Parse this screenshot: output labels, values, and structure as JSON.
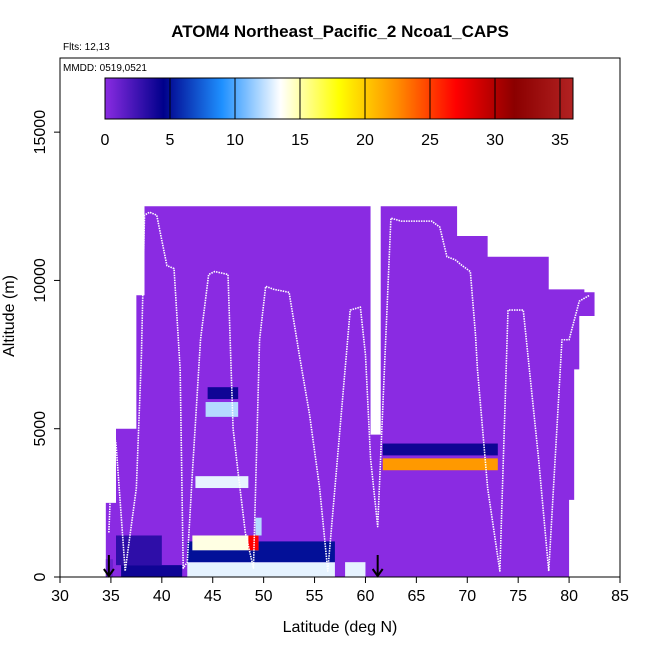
{
  "chart_data": {
    "type": "heatmap",
    "title": "ATOM4 Northeast_Pacific_2 Ncoa1_CAPS",
    "flights_label": "Flts: 12,13",
    "dates_label": "MMDD: 0519,0521",
    "xlabel": "Latitude (deg N)",
    "ylabel": "Altitude (m)",
    "xlim": [
      30,
      85
    ],
    "ylim": [
      0,
      17500
    ],
    "x_ticks": [
      "30",
      "35",
      "40",
      "45",
      "50",
      "55",
      "60",
      "65",
      "70",
      "75",
      "80",
      "85"
    ],
    "y_ticks": [
      "0",
      "5000",
      "10000",
      "15000"
    ],
    "colorbar": {
      "min": 0,
      "max": 36,
      "tick_labels": [
        "0",
        "5",
        "10",
        "15",
        "20",
        "25",
        "30",
        "35"
      ],
      "colors": [
        "#8a2be2",
        "#00008b",
        "#1e90ff",
        "#ffffff",
        "#ffff00",
        "#ff8c00",
        "#ff0000",
        "#8b0000",
        "#b22222"
      ]
    },
    "background_color": "#8a2be2",
    "arrows_latitude": [
      34.8,
      61.2
    ],
    "cells": [
      {
        "lat": [
          34.5,
          35.2
        ],
        "alt": [
          0,
          600
        ],
        "value": 1
      },
      {
        "lat": [
          36,
          42
        ],
        "alt": [
          0,
          400
        ],
        "value": 4
      },
      {
        "lat": [
          35.5,
          40
        ],
        "alt": [
          400,
          1400
        ],
        "value": 3
      },
      {
        "lat": [
          42.5,
          57
        ],
        "alt": [
          0,
          500
        ],
        "value": 13
      },
      {
        "lat": [
          42.5,
          57
        ],
        "alt": [
          500,
          1200
        ],
        "value": 5
      },
      {
        "lat": [
          58,
          60
        ],
        "alt": [
          0,
          500
        ],
        "value": 13
      },
      {
        "lat": [
          43,
          49.5
        ],
        "alt": [
          900,
          1400
        ],
        "value": 14
      },
      {
        "lat": [
          48.5,
          49.5
        ],
        "alt": [
          900,
          1400
        ],
        "value": 27
      },
      {
        "lat": [
          49.2,
          49.8
        ],
        "alt": [
          1400,
          2000
        ],
        "value": 12
      },
      {
        "lat": [
          43.3,
          48.5
        ],
        "alt": [
          3000,
          3400
        ],
        "value": 13
      },
      {
        "lat": [
          44.3,
          47.5
        ],
        "alt": [
          5400,
          5900
        ],
        "value": 12
      },
      {
        "lat": [
          44.5,
          47.5
        ],
        "alt": [
          6000,
          6400
        ],
        "value": 4
      },
      {
        "lat": [
          61.7,
          73
        ],
        "alt": [
          3600,
          4000
        ],
        "value": 22
      },
      {
        "lat": [
          61.7,
          73
        ],
        "alt": [
          4100,
          4500
        ],
        "value": 4
      }
    ],
    "series": [
      {
        "x": [
          34.8,
          35.2,
          35.5,
          36.4,
          37.5,
          38,
          38.3,
          38.8,
          39.5,
          40.5,
          41.2,
          41.8,
          42.1,
          42.5,
          43,
          43.8,
          44.6,
          45.2,
          46.5,
          47,
          47.5,
          48.2,
          49,
          49.6,
          50.2,
          51,
          52.5,
          53.5,
          54.5,
          55.5,
          56.3,
          57.5,
          58.5,
          59.5,
          60,
          60.5,
          61.2,
          62.5,
          63.5,
          66.5,
          67.3,
          68,
          68.8,
          69.5,
          70.3,
          70.8,
          71,
          72,
          73.2,
          74,
          75.5,
          77,
          78,
          79.3,
          80,
          81,
          82
        ],
        "y": [
          1500,
          5000,
          4500,
          200,
          3000,
          7500,
          12200,
          12300,
          12200,
          10500,
          10400,
          7000,
          300,
          500,
          3500,
          8000,
          10200,
          10300,
          10200,
          5000,
          3500,
          1500,
          300,
          8000,
          9800,
          9700,
          9600,
          7500,
          5500,
          3000,
          200,
          5000,
          9000,
          9100,
          7500,
          4000,
          1700,
          12100,
          12000,
          12000,
          11800,
          10800,
          10700,
          10500,
          10300,
          8200,
          7000,
          3000,
          200,
          9000,
          9000,
          4000,
          200,
          8000,
          8000,
          9300,
          9500
        ]
      }
    ]
  }
}
